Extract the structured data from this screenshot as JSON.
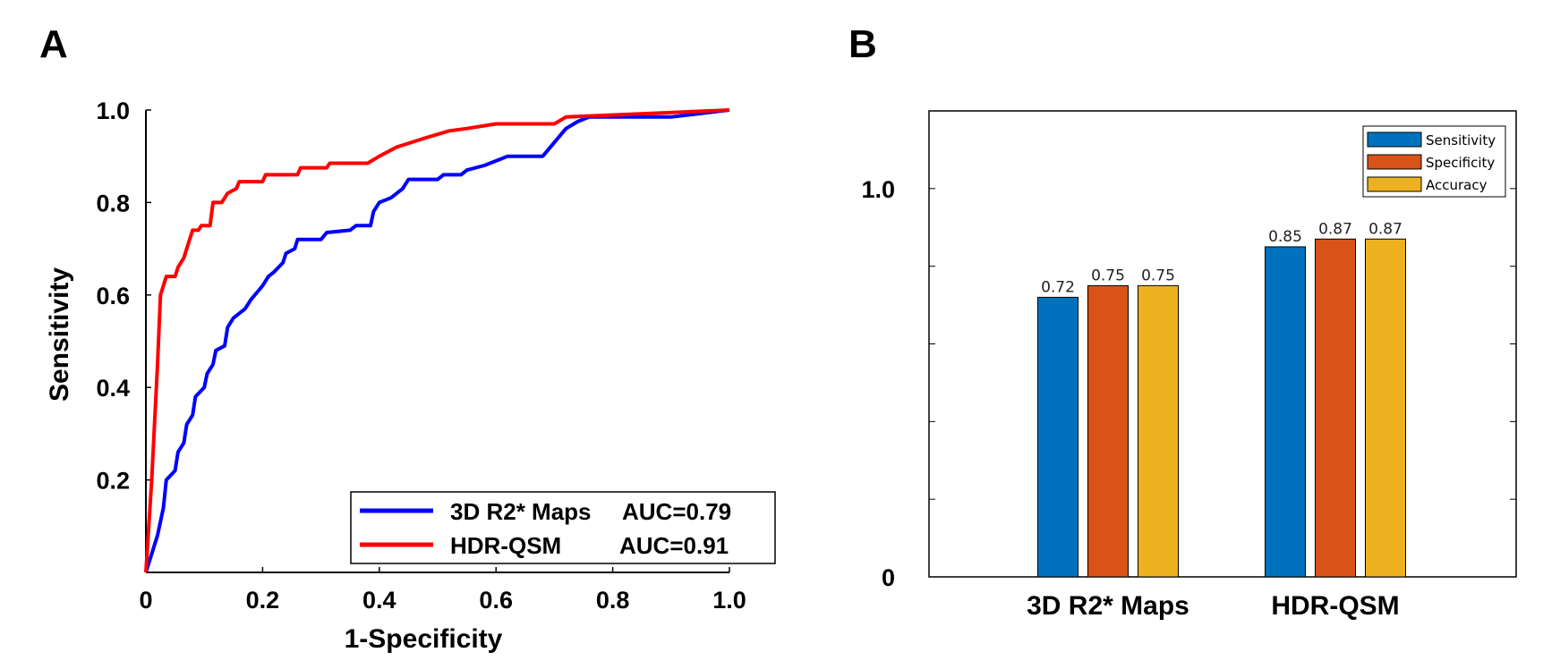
{
  "panel_a": {
    "letter": "A",
    "legend": [
      {
        "label": "3D R2* Maps",
        "auc": "AUC=0.79",
        "color": "#0000ff"
      },
      {
        "label": "HDR-QSM",
        "auc": "AUC=0.91",
        "color": "#ff0000"
      }
    ]
  },
  "panel_b": {
    "letter": "B"
  },
  "chart_data": [
    {
      "type": "line",
      "xlabel": "1-Specificity",
      "ylabel": "Sensitivity",
      "xlim": [
        0,
        1.0
      ],
      "ylim": [
        0,
        1.0
      ],
      "x_ticks": [
        "0",
        "0.2",
        "0.4",
        "0.6",
        "0.8",
        "1.0"
      ],
      "y_ticks": [
        "0.2",
        "0.4",
        "0.6",
        "0.8",
        "1.0"
      ],
      "legend_position": "bottom-right",
      "series": [
        {
          "name": "3D R2* Maps AUC=0.79",
          "color": "#0000ff",
          "points": [
            [
              0,
              0
            ],
            [
              0.02,
              0.08
            ],
            [
              0.03,
              0.14
            ],
            [
              0.035,
              0.2
            ],
            [
              0.05,
              0.22
            ],
            [
              0.055,
              0.26
            ],
            [
              0.065,
              0.28
            ],
            [
              0.07,
              0.32
            ],
            [
              0.08,
              0.34
            ],
            [
              0.085,
              0.38
            ],
            [
              0.1,
              0.4
            ],
            [
              0.105,
              0.43
            ],
            [
              0.115,
              0.45
            ],
            [
              0.12,
              0.48
            ],
            [
              0.135,
              0.49
            ],
            [
              0.14,
              0.53
            ],
            [
              0.15,
              0.55
            ],
            [
              0.17,
              0.57
            ],
            [
              0.18,
              0.59
            ],
            [
              0.2,
              0.62
            ],
            [
              0.21,
              0.64
            ],
            [
              0.22,
              0.65
            ],
            [
              0.235,
              0.67
            ],
            [
              0.24,
              0.69
            ],
            [
              0.255,
              0.7
            ],
            [
              0.26,
              0.72
            ],
            [
              0.3,
              0.72
            ],
            [
              0.31,
              0.735
            ],
            [
              0.35,
              0.74
            ],
            [
              0.36,
              0.75
            ],
            [
              0.385,
              0.75
            ],
            [
              0.39,
              0.78
            ],
            [
              0.4,
              0.8
            ],
            [
              0.42,
              0.81
            ],
            [
              0.44,
              0.83
            ],
            [
              0.45,
              0.85
            ],
            [
              0.5,
              0.85
            ],
            [
              0.51,
              0.86
            ],
            [
              0.54,
              0.86
            ],
            [
              0.55,
              0.87
            ],
            [
              0.58,
              0.88
            ],
            [
              0.6,
              0.89
            ],
            [
              0.62,
              0.9
            ],
            [
              0.68,
              0.9
            ],
            [
              0.7,
              0.93
            ],
            [
              0.72,
              0.96
            ],
            [
              0.74,
              0.975
            ],
            [
              0.75,
              0.98
            ],
            [
              0.76,
              0.985
            ],
            [
              0.9,
              0.985
            ],
            [
              1.0,
              1.0
            ]
          ]
        },
        {
          "name": "HDR-QSM AUC=0.91",
          "color": "#ff0000",
          "points": [
            [
              0,
              0
            ],
            [
              0.01,
              0.2
            ],
            [
              0.02,
              0.45
            ],
            [
              0.025,
              0.6
            ],
            [
              0.03,
              0.62
            ],
            [
              0.035,
              0.64
            ],
            [
              0.05,
              0.64
            ],
            [
              0.055,
              0.66
            ],
            [
              0.065,
              0.68
            ],
            [
              0.07,
              0.7
            ],
            [
              0.075,
              0.72
            ],
            [
              0.08,
              0.74
            ],
            [
              0.09,
              0.74
            ],
            [
              0.095,
              0.75
            ],
            [
              0.11,
              0.75
            ],
            [
              0.115,
              0.8
            ],
            [
              0.13,
              0.8
            ],
            [
              0.14,
              0.82
            ],
            [
              0.155,
              0.83
            ],
            [
              0.16,
              0.845
            ],
            [
              0.2,
              0.845
            ],
            [
              0.205,
              0.86
            ],
            [
              0.26,
              0.86
            ],
            [
              0.265,
              0.875
            ],
            [
              0.31,
              0.875
            ],
            [
              0.315,
              0.885
            ],
            [
              0.38,
              0.885
            ],
            [
              0.4,
              0.9
            ],
            [
              0.43,
              0.92
            ],
            [
              0.48,
              0.94
            ],
            [
              0.52,
              0.955
            ],
            [
              0.55,
              0.96
            ],
            [
              0.6,
              0.97
            ],
            [
              0.7,
              0.97
            ],
            [
              0.72,
              0.985
            ],
            [
              1.0,
              1.0
            ]
          ]
        }
      ]
    },
    {
      "type": "bar",
      "categories": [
        "3D R2* Maps",
        "HDR-QSM"
      ],
      "ylim": [
        0,
        1.2
      ],
      "y_ticks": [
        "0",
        "1.0"
      ],
      "legend_position": "top-right",
      "series": [
        {
          "name": "Sensitivity",
          "color": "#0072bd",
          "values": [
            0.72,
            0.85
          ],
          "labels": [
            "0.72",
            "0.85"
          ]
        },
        {
          "name": "Specificity",
          "color": "#d95319",
          "values": [
            0.75,
            0.87
          ],
          "labels": [
            "0.75",
            "0.87"
          ]
        },
        {
          "name": "Accuracy",
          "color": "#edb120",
          "values": [
            0.75,
            0.87
          ],
          "labels": [
            "0.75",
            "0.87"
          ]
        }
      ]
    }
  ]
}
